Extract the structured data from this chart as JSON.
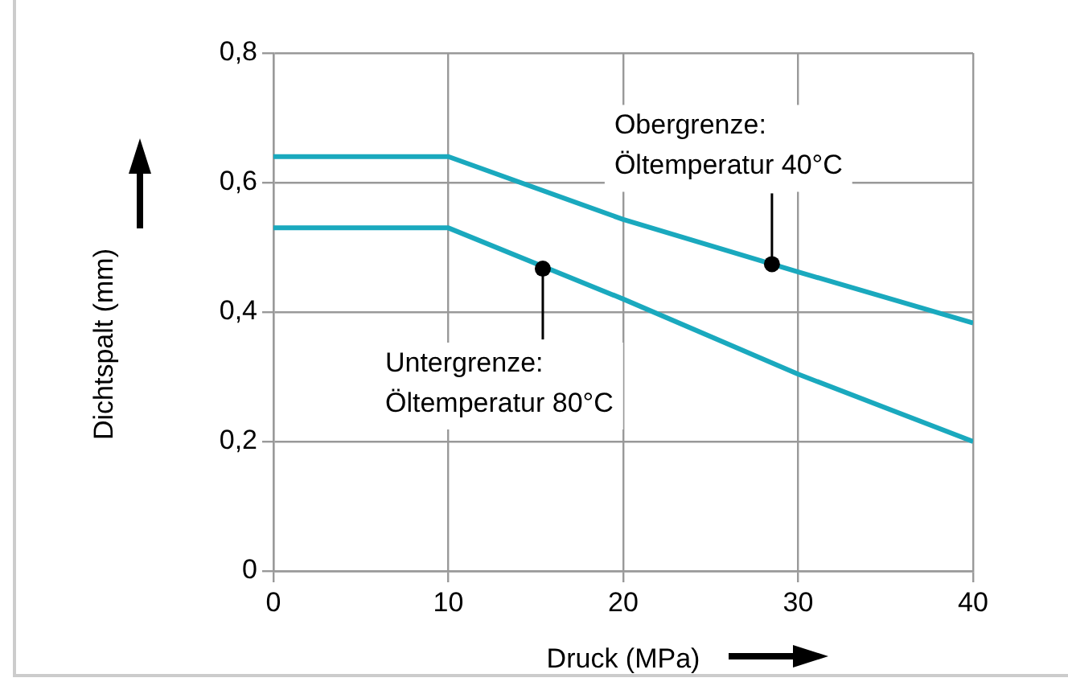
{
  "chart_data": {
    "type": "line",
    "xlabel": "Druck (MPa)",
    "ylabel": "Dichtspalt (mm)",
    "x": [
      0,
      10,
      20,
      30,
      40
    ],
    "series": [
      {
        "color": "#1aa9be",
        "values": [
          0.64,
          0.64,
          0.543,
          0.462,
          0.383
        ]
      },
      {
        "color": "#1aa9be",
        "values": [
          0.53,
          0.53,
          0.42,
          0.304,
          0.2
        ]
      }
    ],
    "xlim": [
      0,
      40
    ],
    "xticks": [
      0,
      10,
      20,
      30,
      40
    ],
    "ylim": [
      0,
      0.8
    ],
    "yticks": [
      0,
      {
        "value": 0.2,
        "label": "0,2"
      },
      {
        "value": 0.4,
        "label": "0,4"
      },
      {
        "value": 0.6,
        "label": "0,6"
      },
      {
        "value": 0.8,
        "label": "0,8"
      }
    ],
    "grid": true,
    "annotations": [
      {
        "text": "Obergrenze:\nÖltemperatur 40°C",
        "x": 28.5,
        "y": 0.474
      },
      {
        "text": "Untergrenze:\nÖltemperatur 80°C",
        "x": 15.4,
        "y": 0.467
      }
    ]
  }
}
